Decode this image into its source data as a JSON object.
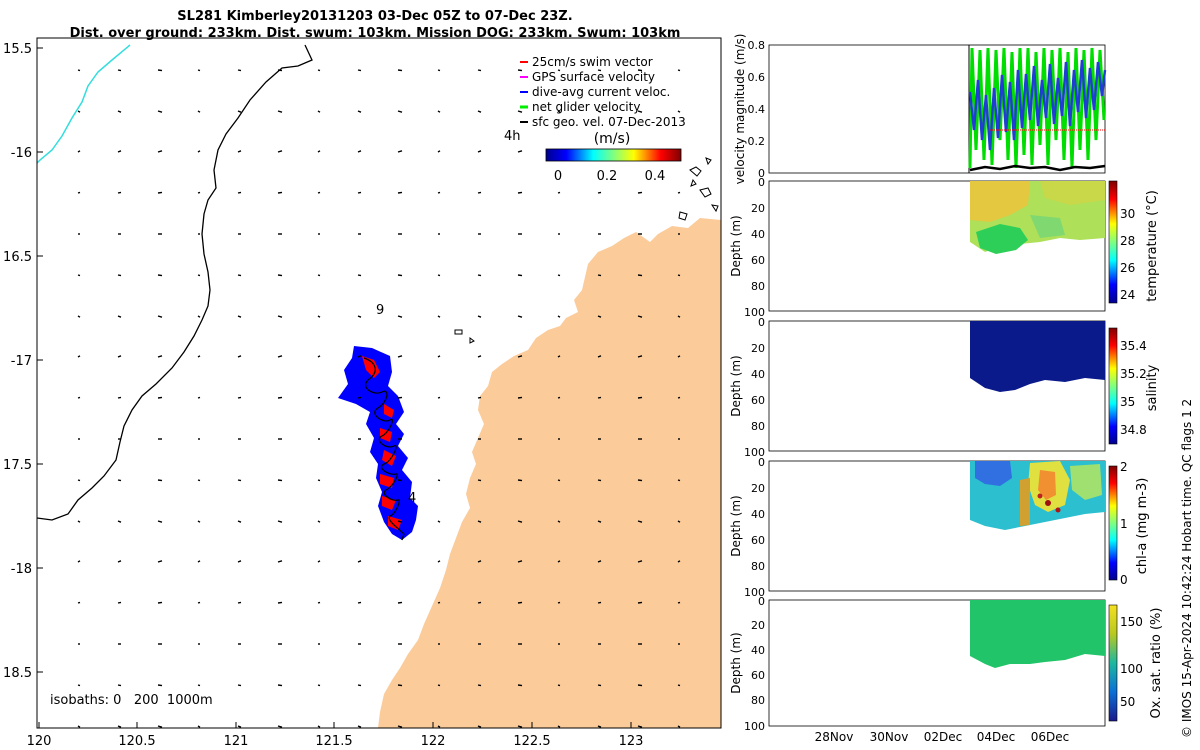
{
  "header": {
    "title_line1": "SL281 Kimberley20131203 03-Dec 05Z to 07-Dec 23Z.",
    "title_line2": "Dist. over ground: 233km. Dist. swum: 103km. Mission DOG: 233km. Swum: 103km"
  },
  "map": {
    "lon_ticks": [
      "120",
      "120.5",
      "121",
      "121.5",
      "122",
      "122.5",
      "123"
    ],
    "lat_ticks": [
      "15.5",
      "-16",
      "16.5",
      "-17",
      "17.5",
      "-18",
      "18.5"
    ],
    "annotations": {
      "four_h": "4h",
      "nine": "9",
      "four": "4"
    },
    "isobaths_label": "isobaths: 0   200  1000m",
    "land_color": "#fbcb9a",
    "path_colors": {
      "current": "#0000ff",
      "swim": "#ff0000",
      "isobath_1000": "#33dddd"
    },
    "legend": [
      {
        "label": "25cm/s swim vector",
        "color": "#ff0000"
      },
      {
        "label": "GPS surface velocity",
        "color": "#ff00ff"
      },
      {
        "label": "dive-avg current veloc.",
        "color": "#0000ff"
      },
      {
        "label": "net glider velocity",
        "color": "#00ee00"
      },
      {
        "label": "sfc geo. vel. 07-Dec-2013",
        "color": "#000000"
      }
    ],
    "colorbar": {
      "unit": "(m/s)",
      "ticks": [
        "0",
        "0.2",
        "0.4"
      ]
    }
  },
  "panels": {
    "velocity": {
      "ylabel": "velocity magnitude (m/s)",
      "yticks": [
        "0.8",
        "0.6",
        "0.4",
        "0.2",
        "0"
      ]
    },
    "depth_ylabel": "Depth (m)",
    "depth_ticks": [
      "0",
      "20",
      "40",
      "60",
      "80",
      "100"
    ],
    "temperature": {
      "label": "temperature (°C)",
      "cbar_ticks": [
        "30",
        "28",
        "26",
        "24"
      ]
    },
    "salinity": {
      "label": "salinity",
      "cbar_ticks": [
        "35.4",
        "35.2",
        "35",
        "34.8"
      ]
    },
    "chla": {
      "label": "chl-a (mg m-3)",
      "cbar_ticks": [
        "2",
        "1",
        "0"
      ]
    },
    "oxygen": {
      "label": "Ox. sat. ratio (%)",
      "cbar_ticks": [
        "150",
        "100",
        "50"
      ]
    },
    "date_ticks": [
      "28Nov",
      "30Nov",
      "02Dec",
      "04Dec",
      "06Dec"
    ]
  },
  "credit": "© IMOS 15-Apr-2024 10:42:24 Hobart time. QC flags 1  2"
}
